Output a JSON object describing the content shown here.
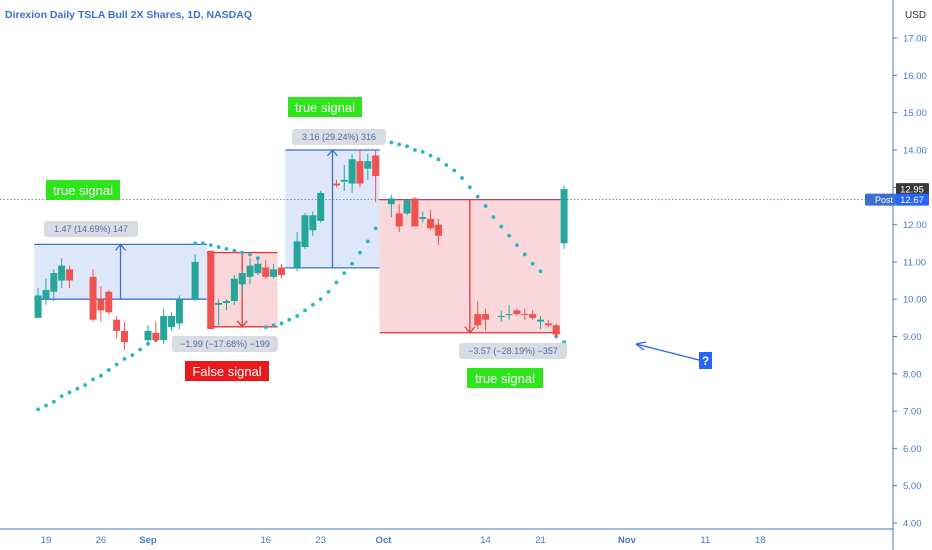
{
  "header": {
    "symbol_title": "Direxion Daily TSLA Bull 2X Shares, 1D, NASDAQ",
    "currency": "USD"
  },
  "price_tags": {
    "last": "12.95",
    "post_label": "Post",
    "post_value": "12.67"
  },
  "colors": {
    "up": "#26a69a",
    "down": "#ef5350",
    "psar": "#26b5c9",
    "blue_box_fill": "#dbe6fb",
    "blue_box_edge": "#3b6fd4",
    "red_box_fill": "#f9d3d6",
    "red_box_edge": "#e53935",
    "green_label": "#2ee51c",
    "red_label": "#e8191b",
    "axis_text": "#4a78c8"
  },
  "annotations": {
    "true_signal_1": "true signal",
    "true_signal_2": "true signal",
    "true_signal_3": "true signal",
    "false_signal": "False signal",
    "question_mark": "?",
    "measure_1": "1.47 (14.69%) 147",
    "measure_2": "−1.99 (−17.68%) −199",
    "measure_3": "3.16 (29.24%) 316",
    "measure_4": "−3.57 (−28.19%) −357"
  },
  "chart_data": {
    "type": "candlestick",
    "title": "Direxion Daily TSLA Bull 2X Shares, 1D, NASDAQ",
    "ylim": [
      3.75,
      18.5
    ],
    "y_ticks": [
      "4.00",
      "5.00",
      "6.00",
      "7.00",
      "8.00",
      "9.00",
      "10.00",
      "11.00",
      "12.00",
      "13.00",
      "14.00",
      "15.00",
      "16.00",
      "17.00"
    ],
    "x_ticks": [
      {
        "label": "19",
        "day": -13
      },
      {
        "label": "26",
        "day": -6
      },
      {
        "label": "Sep",
        "day": 0
      },
      {
        "label": "16",
        "day": 15
      },
      {
        "label": "23",
        "day": 22
      },
      {
        "label": "Oct",
        "day": 30
      },
      {
        "label": "14",
        "day": 43
      },
      {
        "label": "21",
        "day": 50
      },
      {
        "label": "Nov",
        "day": 61
      },
      {
        "label": "11",
        "day": 71
      },
      {
        "label": "18",
        "day": 78
      }
    ],
    "candles": [
      {
        "d": -14,
        "o": 9.5,
        "h": 10.3,
        "l": 9.5,
        "c": 10.1
      },
      {
        "d": -13,
        "o": 10.0,
        "h": 10.55,
        "l": 9.85,
        "c": 10.25
      },
      {
        "d": -12,
        "o": 10.2,
        "h": 10.8,
        "l": 9.95,
        "c": 10.7
      },
      {
        "d": -11,
        "o": 10.5,
        "h": 11.1,
        "l": 10.3,
        "c": 10.9
      },
      {
        "d": -10,
        "o": 10.8,
        "h": 10.9,
        "l": 10.3,
        "c": 10.5
      },
      {
        "d": -7,
        "o": 10.6,
        "h": 10.8,
        "l": 9.4,
        "c": 9.45
      },
      {
        "d": -6,
        "o": 10.0,
        "h": 10.35,
        "l": 9.4,
        "c": 9.7
      },
      {
        "d": -5,
        "o": 10.2,
        "h": 10.25,
        "l": 9.6,
        "c": 9.65
      },
      {
        "d": -4,
        "o": 9.45,
        "h": 9.55,
        "l": 8.95,
        "c": 9.15
      },
      {
        "d": -3,
        "o": 9.15,
        "h": 9.4,
        "l": 8.65,
        "c": 8.85
      },
      {
        "d": 0,
        "o": 8.9,
        "h": 9.3,
        "l": 8.8,
        "c": 9.15
      },
      {
        "d": 1,
        "o": 9.1,
        "h": 9.4,
        "l": 8.85,
        "c": 8.9
      },
      {
        "d": 2,
        "o": 8.9,
        "h": 9.75,
        "l": 8.8,
        "c": 9.55
      },
      {
        "d": 3,
        "o": 9.25,
        "h": 9.65,
        "l": 9.15,
        "c": 9.55
      },
      {
        "d": 4,
        "o": 9.35,
        "h": 10.1,
        "l": 9.2,
        "c": 10.0
      },
      {
        "d": 6,
        "o": 10.0,
        "h": 11.2,
        "l": 9.95,
        "c": 11.0
      },
      {
        "d": 8,
        "o": 11.3,
        "h": 11.3,
        "l": 9.2,
        "c": 9.2
      },
      {
        "d": 9,
        "o": 9.85,
        "h": 10.0,
        "l": 9.3,
        "c": 9.9
      },
      {
        "d": 10,
        "o": 9.9,
        "h": 10.0,
        "l": 9.7,
        "c": 9.95
      },
      {
        "d": 11,
        "o": 9.95,
        "h": 10.65,
        "l": 9.85,
        "c": 10.55
      },
      {
        "d": 12,
        "o": 10.4,
        "h": 10.75,
        "l": 10.1,
        "c": 10.7
      },
      {
        "d": 13,
        "o": 10.6,
        "h": 11.1,
        "l": 10.4,
        "c": 10.9
      },
      {
        "d": 14,
        "o": 10.7,
        "h": 11.1,
        "l": 10.65,
        "c": 10.95
      },
      {
        "d": 15,
        "o": 10.85,
        "h": 11.05,
        "l": 10.55,
        "c": 10.6
      },
      {
        "d": 16,
        "o": 10.6,
        "h": 10.95,
        "l": 10.55,
        "c": 10.8
      },
      {
        "d": 17,
        "o": 10.85,
        "h": 10.95,
        "l": 10.55,
        "c": 10.65
      },
      {
        "d": 19,
        "o": 10.85,
        "h": 11.8,
        "l": 10.75,
        "c": 11.55
      },
      {
        "d": 20,
        "o": 11.4,
        "h": 12.3,
        "l": 11.35,
        "c": 12.25
      },
      {
        "d": 21,
        "o": 11.85,
        "h": 12.35,
        "l": 11.7,
        "c": 12.25
      },
      {
        "d": 22,
        "o": 12.1,
        "h": 12.9,
        "l": 12.05,
        "c": 12.85
      },
      {
        "d": 24,
        "o": 13.1,
        "h": 13.2,
        "l": 13.0,
        "c": 13.05
      },
      {
        "d": 25,
        "o": 13.15,
        "h": 13.6,
        "l": 12.9,
        "c": 13.2
      },
      {
        "d": 26,
        "o": 13.1,
        "h": 13.9,
        "l": 12.85,
        "c": 13.75
      },
      {
        "d": 27,
        "o": 13.7,
        "h": 14.0,
        "l": 13.0,
        "c": 13.1
      },
      {
        "d": 28,
        "o": 13.5,
        "h": 13.9,
        "l": 13.2,
        "c": 13.7
      },
      {
        "d": 29,
        "o": 13.85,
        "h": 14.0,
        "l": 12.6,
        "c": 13.3
      },
      {
        "d": 31,
        "o": 12.55,
        "h": 12.8,
        "l": 12.2,
        "c": 12.7
      },
      {
        "d": 32,
        "o": 12.3,
        "h": 12.55,
        "l": 11.8,
        "c": 11.95
      },
      {
        "d": 33,
        "o": 12.3,
        "h": 12.7,
        "l": 12.25,
        "c": 12.65
      },
      {
        "d": 34,
        "o": 12.7,
        "h": 12.75,
        "l": 11.95,
        "c": 11.95
      },
      {
        "d": 35,
        "o": 12.15,
        "h": 12.35,
        "l": 12.05,
        "c": 12.2
      },
      {
        "d": 36,
        "o": 12.15,
        "h": 12.4,
        "l": 11.85,
        "c": 11.9
      },
      {
        "d": 37,
        "o": 12.0,
        "h": 12.15,
        "l": 11.45,
        "c": 11.7
      },
      {
        "d": 42,
        "o": 9.6,
        "h": 9.95,
        "l": 9.2,
        "c": 9.3
      },
      {
        "d": 43,
        "o": 9.6,
        "h": 9.75,
        "l": 9.15,
        "c": 9.45
      },
      {
        "d": 45,
        "o": 9.55,
        "h": 9.7,
        "l": 9.4,
        "c": 9.55
      },
      {
        "d": 46,
        "o": 9.6,
        "h": 9.85,
        "l": 9.45,
        "c": 9.6
      },
      {
        "d": 47,
        "o": 9.7,
        "h": 9.75,
        "l": 9.55,
        "c": 9.6
      },
      {
        "d": 48,
        "o": 9.6,
        "h": 9.75,
        "l": 9.45,
        "c": 9.58
      },
      {
        "d": 49,
        "o": 9.6,
        "h": 9.7,
        "l": 9.45,
        "c": 9.5
      },
      {
        "d": 50,
        "o": 9.4,
        "h": 9.55,
        "l": 9.2,
        "c": 9.45
      },
      {
        "d": 51,
        "o": 9.35,
        "h": 9.45,
        "l": 9.25,
        "c": 9.3
      },
      {
        "d": 52,
        "o": 9.3,
        "h": 9.35,
        "l": 8.95,
        "c": 9.05
      },
      {
        "d": 53,
        "o": 11.5,
        "h": 13.05,
        "l": 11.35,
        "c": 12.95
      }
    ],
    "psar": [
      [
        -14,
        7.05
      ],
      [
        -13,
        7.15
      ],
      [
        -12,
        7.25
      ],
      [
        -11,
        7.4
      ],
      [
        -10,
        7.5
      ],
      [
        -9,
        7.6
      ],
      [
        -8,
        7.7
      ],
      [
        -7,
        7.85
      ],
      [
        -6,
        7.95
      ],
      [
        -5,
        8.1
      ],
      [
        -4,
        8.25
      ],
      [
        -3,
        8.4
      ],
      [
        -2,
        8.5
      ],
      [
        -1,
        8.65
      ],
      [
        0,
        8.8
      ],
      [
        1,
        8.9
      ],
      [
        2,
        9.1
      ],
      [
        6,
        11.5
      ],
      [
        7,
        11.5
      ],
      [
        8,
        11.45
      ],
      [
        9,
        11.4
      ],
      [
        10,
        11.35
      ],
      [
        11,
        11.3
      ],
      [
        12,
        11.25
      ],
      [
        13,
        11.2
      ],
      [
        14,
        11.1
      ],
      [
        15,
        9.25
      ],
      [
        16,
        9.3
      ],
      [
        17,
        9.35
      ],
      [
        18,
        9.45
      ],
      [
        19,
        9.55
      ],
      [
        20,
        9.7
      ],
      [
        21,
        9.85
      ],
      [
        22,
        10.0
      ],
      [
        23,
        10.2
      ],
      [
        24,
        10.45
      ],
      [
        25,
        10.7
      ],
      [
        26,
        10.95
      ],
      [
        27,
        11.25
      ],
      [
        28,
        11.55
      ],
      [
        29,
        11.9
      ],
      [
        31,
        14.2
      ],
      [
        32,
        14.15
      ],
      [
        33,
        14.1
      ],
      [
        34,
        14.0
      ],
      [
        35,
        13.95
      ],
      [
        36,
        13.85
      ],
      [
        37,
        13.75
      ],
      [
        38,
        13.6
      ],
      [
        39,
        13.45
      ],
      [
        40,
        13.25
      ],
      [
        41,
        13.0
      ],
      [
        42,
        12.75
      ],
      [
        43,
        12.5
      ],
      [
        44,
        12.2
      ],
      [
        45,
        11.95
      ],
      [
        46,
        11.7
      ],
      [
        47,
        11.45
      ],
      [
        48,
        11.2
      ],
      [
        49,
        10.95
      ],
      [
        50,
        10.75
      ],
      [
        52,
        9.0
      ],
      [
        53,
        8.85
      ]
    ],
    "measure_boxes": [
      {
        "d1": -14,
        "d2": 7,
        "y_from": 10.0,
        "y_to": 11.47,
        "kind": "up"
      },
      {
        "d1": 8,
        "d2": 16,
        "y_from": 11.25,
        "y_to": 9.26,
        "kind": "down"
      },
      {
        "d1": 18,
        "d2": 29,
        "y_from": 10.84,
        "y_to": 14.0,
        "kind": "up"
      },
      {
        "d1": 30,
        "d2": 52,
        "y_from": 12.67,
        "y_to": 9.1,
        "kind": "down"
      }
    ],
    "last_price": 12.95,
    "post_price": 12.67
  }
}
